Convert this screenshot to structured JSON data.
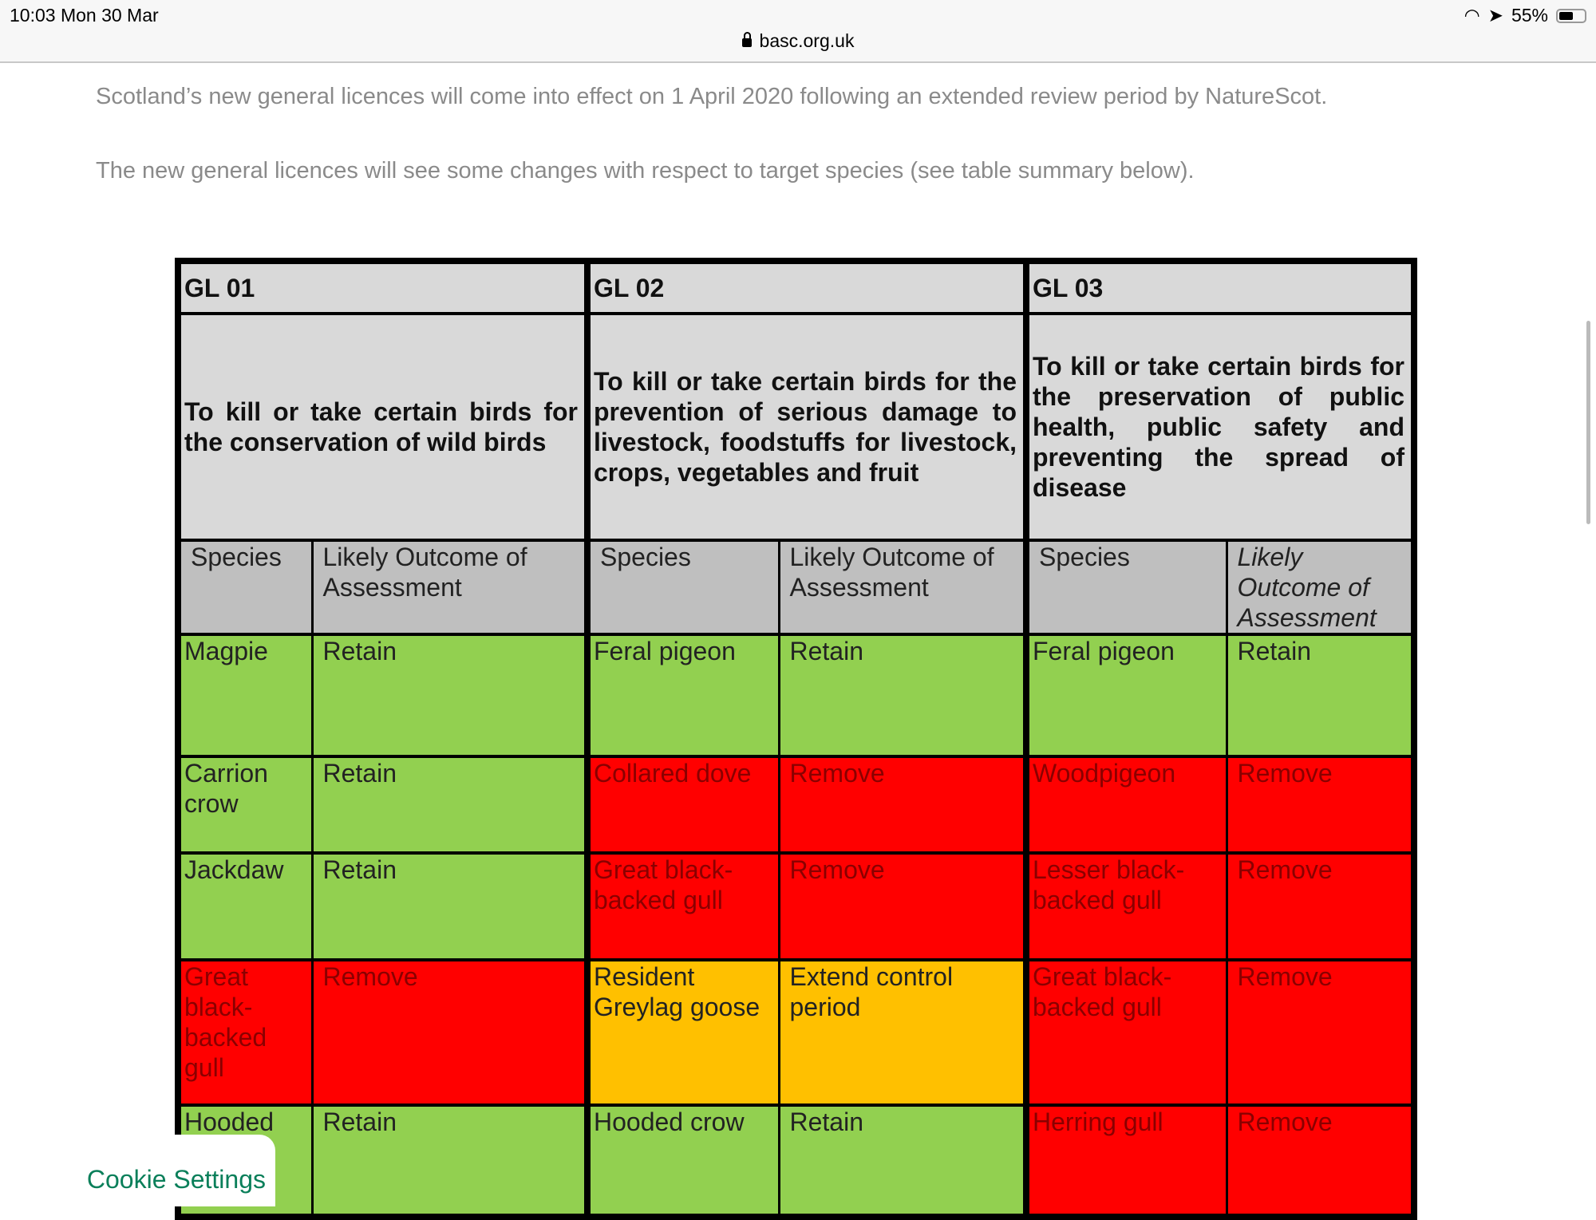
{
  "status": {
    "time": "10:03  Mon 30 Mar",
    "url": "basc.org.uk",
    "battery": "55%",
    "battery_level": 0.55
  },
  "intro": [
    "Scotland’s new general licences will come into effect on 1 April 2020 following an extended review period by NatureScot.",
    "The new general licences will see some changes with respect to target species (see table summary below)."
  ],
  "table": {
    "headers": [
      "GL 01",
      "GL 02",
      "GL 03"
    ],
    "descriptions": [
      "To kill or take certain birds for the conservation of wild birds",
      "To kill or take certain birds for the prevention of serious damage to livestock, foodstuffs for livestock, crops, vegetables and fruit",
      "To kill or take certain birds for the preservation of public health, public safety and preventing the spread of disease"
    ],
    "subheaders": [
      "Species",
      "Likely Outcome of Assessment",
      "Species",
      "Likely Outcome of Assessment",
      "Species",
      "Likely Outcome of Assessment"
    ],
    "colors": {
      "green": "#92d050",
      "red": "#ff0000",
      "amber": "#ffc000"
    },
    "rows": [
      [
        {
          "t": "Magpie",
          "c": "green"
        },
        {
          "t": "Retain",
          "c": "green"
        },
        {
          "t": "Feral pigeon",
          "c": "green"
        },
        {
          "t": "Retain",
          "c": "green"
        },
        {
          "t": "Feral pigeon",
          "c": "green"
        },
        {
          "t": "Retain",
          "c": "green"
        }
      ],
      [
        {
          "t": "Carrion crow",
          "c": "green"
        },
        {
          "t": "Retain",
          "c": "green"
        },
        {
          "t": "Collared dove",
          "c": "red"
        },
        {
          "t": "Remove",
          "c": "red"
        },
        {
          "t": "Woodpigeon",
          "c": "red"
        },
        {
          "t": "Remove",
          "c": "red"
        }
      ],
      [
        {
          "t": "Jackdaw",
          "c": "green"
        },
        {
          "t": "Retain",
          "c": "green"
        },
        {
          "t": "Great black-backed gull",
          "c": "red"
        },
        {
          "t": "Remove",
          "c": "red"
        },
        {
          "t": "Lesser black-backed gull",
          "c": "red"
        },
        {
          "t": "Remove",
          "c": "red"
        }
      ],
      [
        {
          "t": "Great black-backed gull",
          "c": "red"
        },
        {
          "t": "Remove",
          "c": "red"
        },
        {
          "t": "Resident Greylag goose",
          "c": "amber"
        },
        {
          "t": "Extend control period",
          "c": "amber"
        },
        {
          "t": "Great black-backed gull",
          "c": "red"
        },
        {
          "t": "Remove",
          "c": "red"
        }
      ],
      [
        {
          "t": "Hooded crow",
          "c": "green"
        },
        {
          "t": "Retain",
          "c": "green"
        },
        {
          "t": "Hooded crow",
          "c": "green"
        },
        {
          "t": "Retain",
          "c": "green"
        },
        {
          "t": "Herring gull",
          "c": "red"
        },
        {
          "t": "Remove",
          "c": "red"
        }
      ]
    ]
  },
  "cookie": "Cookie Settings"
}
